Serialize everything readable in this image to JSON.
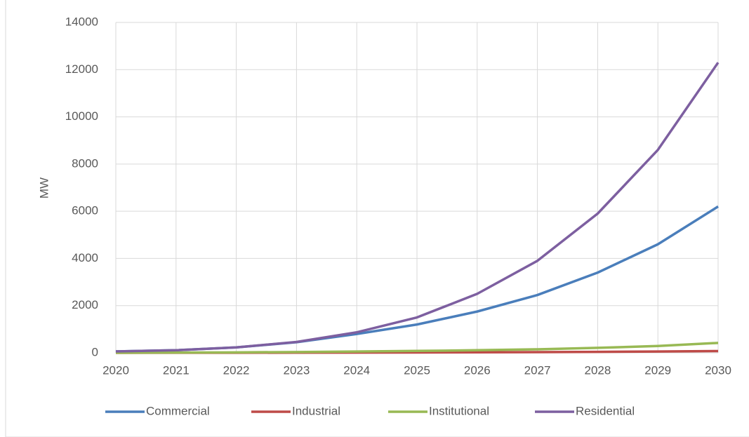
{
  "chart_data": {
    "type": "line",
    "y_label": "MW",
    "x": [
      2020,
      2021,
      2022,
      2023,
      2024,
      2025,
      2026,
      2027,
      2028,
      2029,
      2030
    ],
    "xlim": [
      2020,
      2030
    ],
    "xticks": [
      2020,
      2021,
      2022,
      2023,
      2024,
      2025,
      2026,
      2027,
      2028,
      2029,
      2030
    ],
    "ylim": [
      0,
      14000
    ],
    "yticks": [
      0,
      2000,
      4000,
      6000,
      8000,
      10000,
      12000,
      14000
    ],
    "grid": true,
    "legend": "bottom",
    "series": [
      {
        "name": "Commercial",
        "color": "#4a7ebb",
        "values": [
          60,
          110,
          230,
          450,
          800,
          1200,
          1750,
          2450,
          3400,
          4600,
          6200
        ]
      },
      {
        "name": "Industrial",
        "color": "#be4b48",
        "values": [
          1,
          2,
          4,
          7,
          10,
          15,
          22,
          30,
          42,
          55,
          75
        ]
      },
      {
        "name": "Institutional",
        "color": "#98b954",
        "values": [
          5,
          10,
          20,
          35,
          55,
          80,
          110,
          150,
          210,
          290,
          420
        ]
      },
      {
        "name": "Residential",
        "color": "#7d5fa0",
        "values": [
          60,
          110,
          230,
          460,
          870,
          1500,
          2500,
          3900,
          5900,
          8600,
          12300
        ]
      }
    ]
  }
}
